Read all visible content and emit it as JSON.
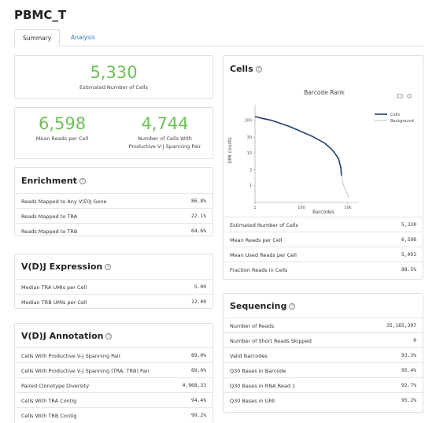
{
  "page_title": "PBMC_T",
  "tabs": [
    {
      "label": "Summary"
    },
    {
      "label": "Analysis"
    }
  ],
  "estimated_cells": {
    "value": "5,330",
    "label": "Estimated Number of Cells"
  },
  "reads": {
    "mean_value": "6,598",
    "mean_label": "Mean Reads per Cell",
    "vj_value": "4,744",
    "vj_label_1": "Number of Cells With",
    "vj_label_2": "Productive V-J Spanning Pair"
  },
  "enrichment": {
    "title": "Enrichment",
    "rows": [
      {
        "label": "Reads Mapped to Any V(D)J Gene",
        "value": "86.8%"
      },
      {
        "label": "Reads Mapped to TRA",
        "value": "22.1%"
      },
      {
        "label": "Reads Mapped to TRB",
        "value": "64.6%"
      }
    ]
  },
  "vdj_expression": {
    "title": "V(D)J Expression",
    "rows": [
      {
        "label": "Median TRA UMIs per Cell",
        "value": "5.00"
      },
      {
        "label": "Median TRB UMIs per Cell",
        "value": "12.00"
      }
    ]
  },
  "vdj_annotation": {
    "title": "V(D)J Annotation",
    "rows": [
      {
        "label": "Cells With Productive V-J Spanning Pair",
        "value": "89.0%"
      },
      {
        "label": "Cells With Productive V-J Spanning (TRA, TRB) Pair",
        "value": "89.0%"
      },
      {
        "label": "Paired Clonotype Diversity",
        "value": "4,968.33"
      },
      {
        "label": "Cells With TRA Contig",
        "value": "94.4%"
      },
      {
        "label": "Cells With TRB Contig",
        "value": "99.2%"
      }
    ]
  },
  "cells": {
    "title": "Cells",
    "rows": [
      {
        "label": "Estimated Number of Cells",
        "value": "5,330"
      },
      {
        "label": "Mean Reads per Cell",
        "value": "6,598"
      },
      {
        "label": "Mean Used Reads per Cell",
        "value": "5,093"
      },
      {
        "label": "Fraction Reads in Cells",
        "value": "88.5%"
      }
    ]
  },
  "sequencing": {
    "title": "Sequencing",
    "rows": [
      {
        "label": "Number of Reads",
        "value": "35,165,307"
      },
      {
        "label": "Number of Short Reads Skipped",
        "value": "0"
      },
      {
        "label": "Valid Barcodes",
        "value": "93.3%"
      },
      {
        "label": "Q30 Bases in Barcode",
        "value": "95.4%"
      },
      {
        "label": "Q30 Bases in RNA Read 1",
        "value": "92.7%"
      },
      {
        "label": "Q30 Bases in UMI",
        "value": "95.2%"
      }
    ]
  },
  "chart_data": {
    "type": "line",
    "title": "Barcode Rank",
    "xlabel": "Barcodes",
    "ylabel": "UMI counts",
    "x_scale": "log",
    "y_scale": "log",
    "xlim": [
      1,
      30000
    ],
    "ylim": [
      0.3,
      300
    ],
    "x_ticks": [
      {
        "value": 1,
        "label": "1"
      },
      {
        "value": 100,
        "label": "100"
      },
      {
        "value": 10000,
        "label": "10k"
      }
    ],
    "y_ticks": [
      {
        "value": 1,
        "label": "1"
      },
      {
        "value": 3,
        "label": "3"
      },
      {
        "value": 10,
        "label": "10"
      },
      {
        "value": 30,
        "label": "30"
      },
      {
        "value": 100,
        "label": "100"
      }
    ],
    "legend_position": "right",
    "series": [
      {
        "name": "Cells",
        "color": "#1f3f6e",
        "x": [
          1,
          2,
          5,
          10,
          30,
          100,
          300,
          1000,
          2000,
          3000,
          4000,
          5000,
          5330
        ],
        "y": [
          130,
          115,
          100,
          85,
          65,
          45,
          32,
          20,
          13,
          9,
          6.5,
          3.5,
          2
        ]
      },
      {
        "name": "Background",
        "color": "#cccccc",
        "x": [
          5330,
          5800,
          6500,
          7500,
          9000,
          11000
        ],
        "y": [
          2,
          1.4,
          1,
          0.8,
          0.6,
          0.4
        ]
      }
    ]
  },
  "chart_icons": [
    "camera-icon",
    "gear-icon"
  ]
}
